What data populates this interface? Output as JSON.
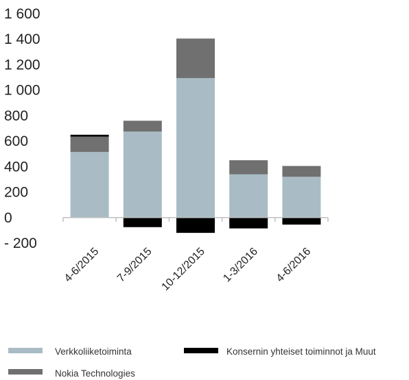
{
  "chart_data": {
    "type": "bar",
    "stacked": true,
    "categories": [
      "4-6/2015",
      "7-9/2015",
      "10-12/2015",
      "1-3/2016",
      "4-6/2016"
    ],
    "series": [
      {
        "name": "Verkkoliiketoiminta",
        "color": "#a9bcc5",
        "values": [
          515,
          675,
          1095,
          340,
          320
        ]
      },
      {
        "name": "Nokia Technologies",
        "color": "#707070",
        "values": [
          120,
          85,
          310,
          110,
          85
        ]
      },
      {
        "name": "Konsernin yhteiset toiminnot ja Muut",
        "color": "#000000",
        "values": [
          15,
          -75,
          -120,
          -85,
          -55
        ]
      }
    ],
    "ylim": [
      -200,
      1600
    ],
    "yticks": [
      -200,
      0,
      200,
      400,
      600,
      800,
      1000,
      1200,
      1400,
      1600
    ],
    "ytick_labels": [
      "- 200",
      "0",
      "200",
      "400",
      "600",
      "800",
      "1 000",
      "1 200",
      "1 400",
      "1 600"
    ],
    "grid": false,
    "legend_position": "bottom"
  }
}
